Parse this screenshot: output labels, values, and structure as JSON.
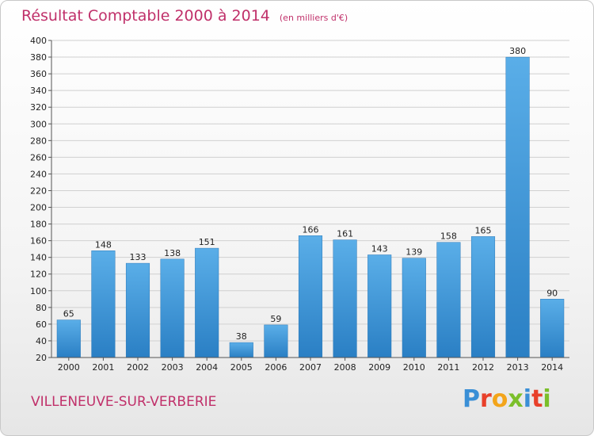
{
  "header": {
    "title": "Résultat Comptable 2000 à 2014",
    "subtitle": "(en milliers d'€)"
  },
  "footer": {
    "town": "VILLENEUVE-SUR-VERBERIE",
    "logo_letters": [
      "P",
      "r",
      "o",
      "x",
      "i",
      "t",
      "i"
    ],
    "logo_colors": [
      "#3a8fd6",
      "#e8402a",
      "#f3a51b",
      "#7bbf2a",
      "#3a8fd6",
      "#e8402a",
      "#7bbf2a"
    ]
  },
  "chart_data": {
    "type": "bar",
    "title": "Résultat Comptable 2000 à 2014",
    "subtitle": "(en milliers d'€)",
    "categories": [
      "2000",
      "2001",
      "2002",
      "2003",
      "2004",
      "2005",
      "2006",
      "2007",
      "2008",
      "2009",
      "2010",
      "2011",
      "2012",
      "2013",
      "2014"
    ],
    "values": [
      65,
      148,
      133,
      138,
      151,
      38,
      59,
      166,
      161,
      143,
      139,
      158,
      165,
      380,
      90
    ],
    "ylim": [
      20,
      400
    ],
    "yticks": [
      20,
      40,
      60,
      80,
      100,
      120,
      140,
      160,
      180,
      200,
      220,
      240,
      260,
      280,
      300,
      320,
      340,
      360,
      380,
      400
    ],
    "grid": true,
    "bar_color_top": "#5aaee8",
    "bar_color_bottom": "#2a7fc4"
  }
}
